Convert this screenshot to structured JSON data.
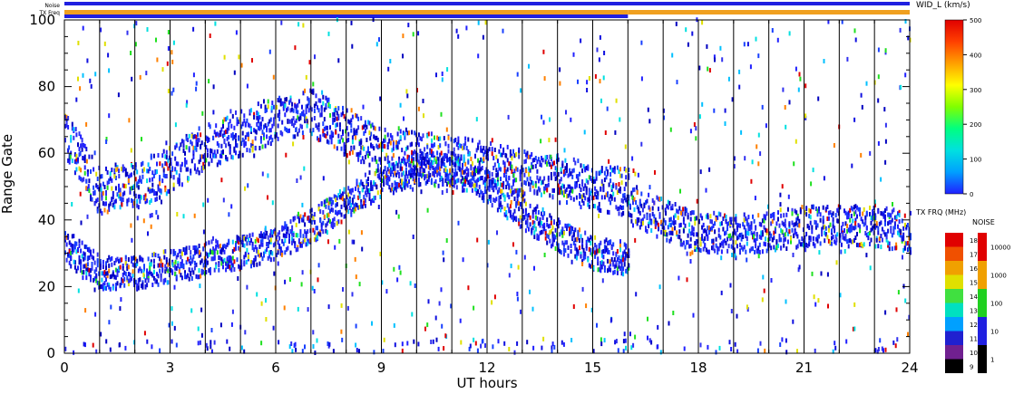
{
  "chart_data": {
    "type": "scatter",
    "xlabel": "UT hours",
    "ylabel": "Range Gate",
    "xlim": [
      0,
      24
    ],
    "ylim": [
      0,
      100
    ],
    "x_ticks": [
      0,
      3,
      6,
      9,
      12,
      15,
      18,
      21,
      24
    ],
    "y_ticks": [
      0,
      20,
      40,
      60,
      80,
      100
    ],
    "vertical_lines_x": [
      1,
      2,
      3,
      4,
      5,
      6,
      7,
      8,
      9,
      10,
      11,
      12,
      13,
      14,
      15,
      16,
      17,
      18,
      19,
      20,
      21,
      22,
      23
    ],
    "status_bars": {
      "noise_label": "Noise",
      "txfreq_label": "TX Freq",
      "noise_segments": [
        {
          "from": 0,
          "to": 24,
          "color": "#2020e0"
        }
      ],
      "txfreq_segments": [
        {
          "from": 0,
          "to": 16,
          "color": "#f0a020"
        },
        {
          "from": 16,
          "to": 24,
          "color": "#f0a020"
        }
      ],
      "txfreq_line_until": 16
    },
    "scatter_bands": [
      {
        "name": "lower trace",
        "points": [
          [
            0,
            32
          ],
          [
            1,
            24
          ],
          [
            2,
            24
          ],
          [
            3,
            26
          ],
          [
            4,
            28
          ],
          [
            5,
            30
          ],
          [
            6,
            33
          ],
          [
            7,
            38
          ],
          [
            8,
            45
          ],
          [
            9,
            52
          ],
          [
            10,
            55
          ],
          [
            11,
            55
          ],
          [
            12,
            50
          ],
          [
            13,
            42
          ],
          [
            14,
            35
          ],
          [
            15,
            30
          ],
          [
            16,
            28
          ]
        ]
      },
      {
        "name": "upper trace",
        "points": [
          [
            0,
            66
          ],
          [
            1,
            48
          ],
          [
            2,
            50
          ],
          [
            3,
            55
          ],
          [
            4,
            62
          ],
          [
            5,
            66
          ],
          [
            6,
            70
          ],
          [
            7,
            72
          ],
          [
            8,
            66
          ],
          [
            9,
            60
          ],
          [
            10,
            60
          ],
          [
            11,
            58
          ],
          [
            12,
            56
          ],
          [
            13,
            54
          ],
          [
            14,
            52
          ],
          [
            15,
            50
          ],
          [
            16,
            48
          ]
        ]
      },
      {
        "name": "late band",
        "points": [
          [
            16,
            44
          ],
          [
            17,
            40
          ],
          [
            18,
            36
          ],
          [
            19,
            36
          ],
          [
            20,
            36
          ],
          [
            21,
            38
          ],
          [
            22,
            38
          ],
          [
            23,
            38
          ],
          [
            24,
            36
          ]
        ]
      }
    ],
    "legends": [
      {
        "title": "WID_L (km/s)",
        "type": "colorbar",
        "ticks": [
          "0",
          "100",
          "200",
          "300",
          "400",
          "500"
        ],
        "stops": [
          "#2020ff",
          "#00a0ff",
          "#00e0e0",
          "#00ff80",
          "#80ff00",
          "#ffff00",
          "#ffa000",
          "#ff4000",
          "#e00000"
        ]
      },
      {
        "title": "TX FRQ (MHz)",
        "type": "discrete",
        "ticks": [
          "9",
          "10",
          "11",
          "12",
          "13",
          "14",
          "15",
          "16",
          "17",
          "18"
        ],
        "colors": [
          "#000000",
          "#702090",
          "#2020d0",
          "#00a0ff",
          "#00e0c0",
          "#40e040",
          "#e0e000",
          "#f0a000",
          "#f05000",
          "#e00000"
        ]
      },
      {
        "title": "NOISE",
        "type": "discrete",
        "ticks": [
          "1",
          "10",
          "100",
          "1000",
          "10000"
        ],
        "colors": [
          "#000000",
          "#2020e0",
          "#20d020",
          "#f0a000",
          "#e00000"
        ]
      }
    ]
  }
}
